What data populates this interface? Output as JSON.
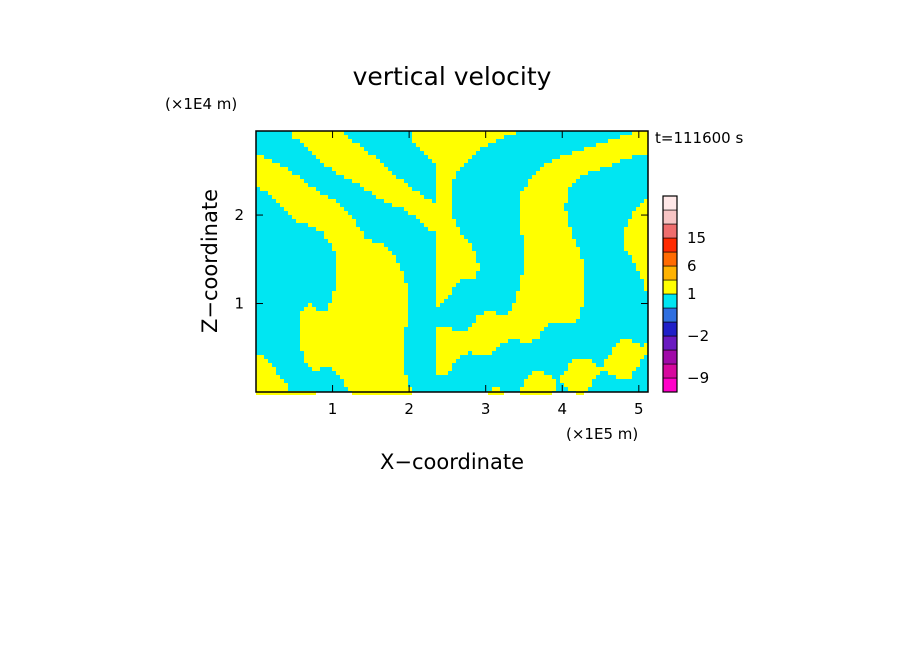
{
  "chart_data": {
    "type": "heatmap",
    "title": "vertical velocity",
    "xlabel": "X−coordinate",
    "ylabel": "Z−coordinate",
    "x_unit": "(×1E5 m)",
    "y_unit": "(×1E4 m)",
    "time_label": "t=111600 s",
    "xlim": [
      0,
      5.12
    ],
    "ylim": [
      0,
      2.95
    ],
    "x_ticks": [
      1,
      2,
      3,
      4,
      5
    ],
    "y_ticks": [
      1,
      2
    ],
    "colorbar": {
      "levels": [
        -12,
        -9,
        -6,
        -4,
        -2,
        -1,
        0,
        1,
        2,
        6,
        10,
        15,
        25
      ],
      "tick_labels": [
        "-9",
        "-2",
        "1",
        "6",
        "15"
      ],
      "colors": [
        "#ff00c8",
        "#d6089e",
        "#a00aa8",
        "#6a1ac0",
        "#2020c8",
        "#2f6fe0",
        "#00e6f2",
        "#ffff00",
        "#ffb200",
        "#ff6a00",
        "#ff2a00",
        "#ef6e6e",
        "#f7c4c4",
        "#ffe8e8"
      ]
    },
    "field_description_colors": {
      "updraft": "#ffff00",
      "downdraft": "#00e6f2"
    }
  }
}
